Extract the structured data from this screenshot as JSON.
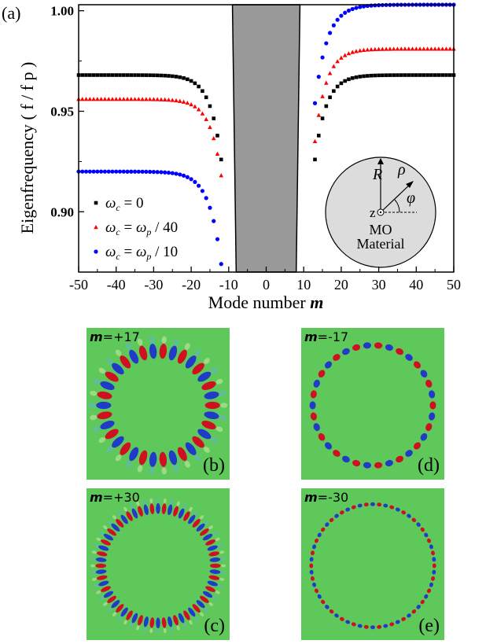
{
  "chart_data": {
    "type": "scatter",
    "panel_label": "(a)",
    "xlabel_prefix": "Mode number ",
    "xlabel_var": "m",
    "ylabel": "Eigenfrequency ( f / f p )",
    "xlim": [
      -50,
      50
    ],
    "ylim": [
      0.87,
      1.003
    ],
    "x_ticks": [
      "-50",
      "-40",
      "-30",
      "-20",
      "-10",
      "0",
      "10",
      "20",
      "30",
      "40",
      "50"
    ],
    "y_ticks": [
      "0.90",
      "0.95",
      "1.00"
    ],
    "grid": false,
    "legend_placement": "bottom-left",
    "bandgap": {
      "x_left_top": -9.0,
      "x_left_bottom": -8.0,
      "x_right_top": 9.0,
      "x_right_bottom": 8.0,
      "color": "#999999"
    },
    "series": [
      {
        "name": "ω_c = 0",
        "legend_sym": "ω",
        "legend_sub": "c",
        "legend_rest": " = 0",
        "color": "#000000",
        "marker": "square",
        "asymptote": 0.968,
        "neg_edge": 0.926,
        "neg_start": -12,
        "pos_edge": 0.926,
        "pos_start": 13,
        "decay": 3.0
      },
      {
        "name": "ω_c = ω_p / 40",
        "legend_sym": "ω",
        "legend_sub": "c",
        "legend_rest": " = ω",
        "legend_sub2": "p",
        "legend_tail": " / 40",
        "color": "#ff0000",
        "marker": "triangle",
        "asymptote_neg": 0.956,
        "asymptote_pos": 0.981,
        "neg_edge": 0.918,
        "neg_start": -12,
        "pos_edge": 0.935,
        "pos_start": 13,
        "decay": 3.0
      },
      {
        "name": "ω_c = ω_p / 10",
        "legend_sym": "ω",
        "legend_sub": "c",
        "legend_rest": " = ω",
        "legend_sub2": "p",
        "legend_tail": " / 10",
        "color": "#0000ff",
        "marker": "circle",
        "asymptote_neg": 0.92,
        "asymptote_pos": 1.003,
        "neg_edge": 0.874,
        "neg_start": -12,
        "pos_edge": 0.954,
        "pos_start": 13,
        "decay": 3.2
      }
    ]
  },
  "inset": {
    "R": "R",
    "rho": "ρ",
    "phi": "φ",
    "z": "z",
    "material_line1": "MO",
    "material_line2": "Material"
  },
  "field_panels": [
    {
      "mode_prefix": "m",
      "mode_value": "=+17",
      "letter": "(b)",
      "m": 17,
      "ring_radius": 0.38,
      "ring_width": 0.1
    },
    {
      "mode_prefix": "m",
      "mode_value": "=-17",
      "letter": "(d)",
      "m": 17,
      "ring_radius": 0.42,
      "ring_width": 0.045
    },
    {
      "mode_prefix": "m",
      "mode_value": "=+30",
      "letter": "(c)",
      "m": 30,
      "ring_radius": 0.4,
      "ring_width": 0.07
    },
    {
      "mode_prefix": "m",
      "mode_value": "=-30",
      "letter": "(e)",
      "m": 30,
      "ring_radius": 0.43,
      "ring_width": 0.025
    }
  ],
  "colors": {
    "field_bg": "#5fc85a",
    "positive": "#d9001b",
    "negative": "#1a2fd0",
    "inset_fill": "#dcdcdc"
  }
}
